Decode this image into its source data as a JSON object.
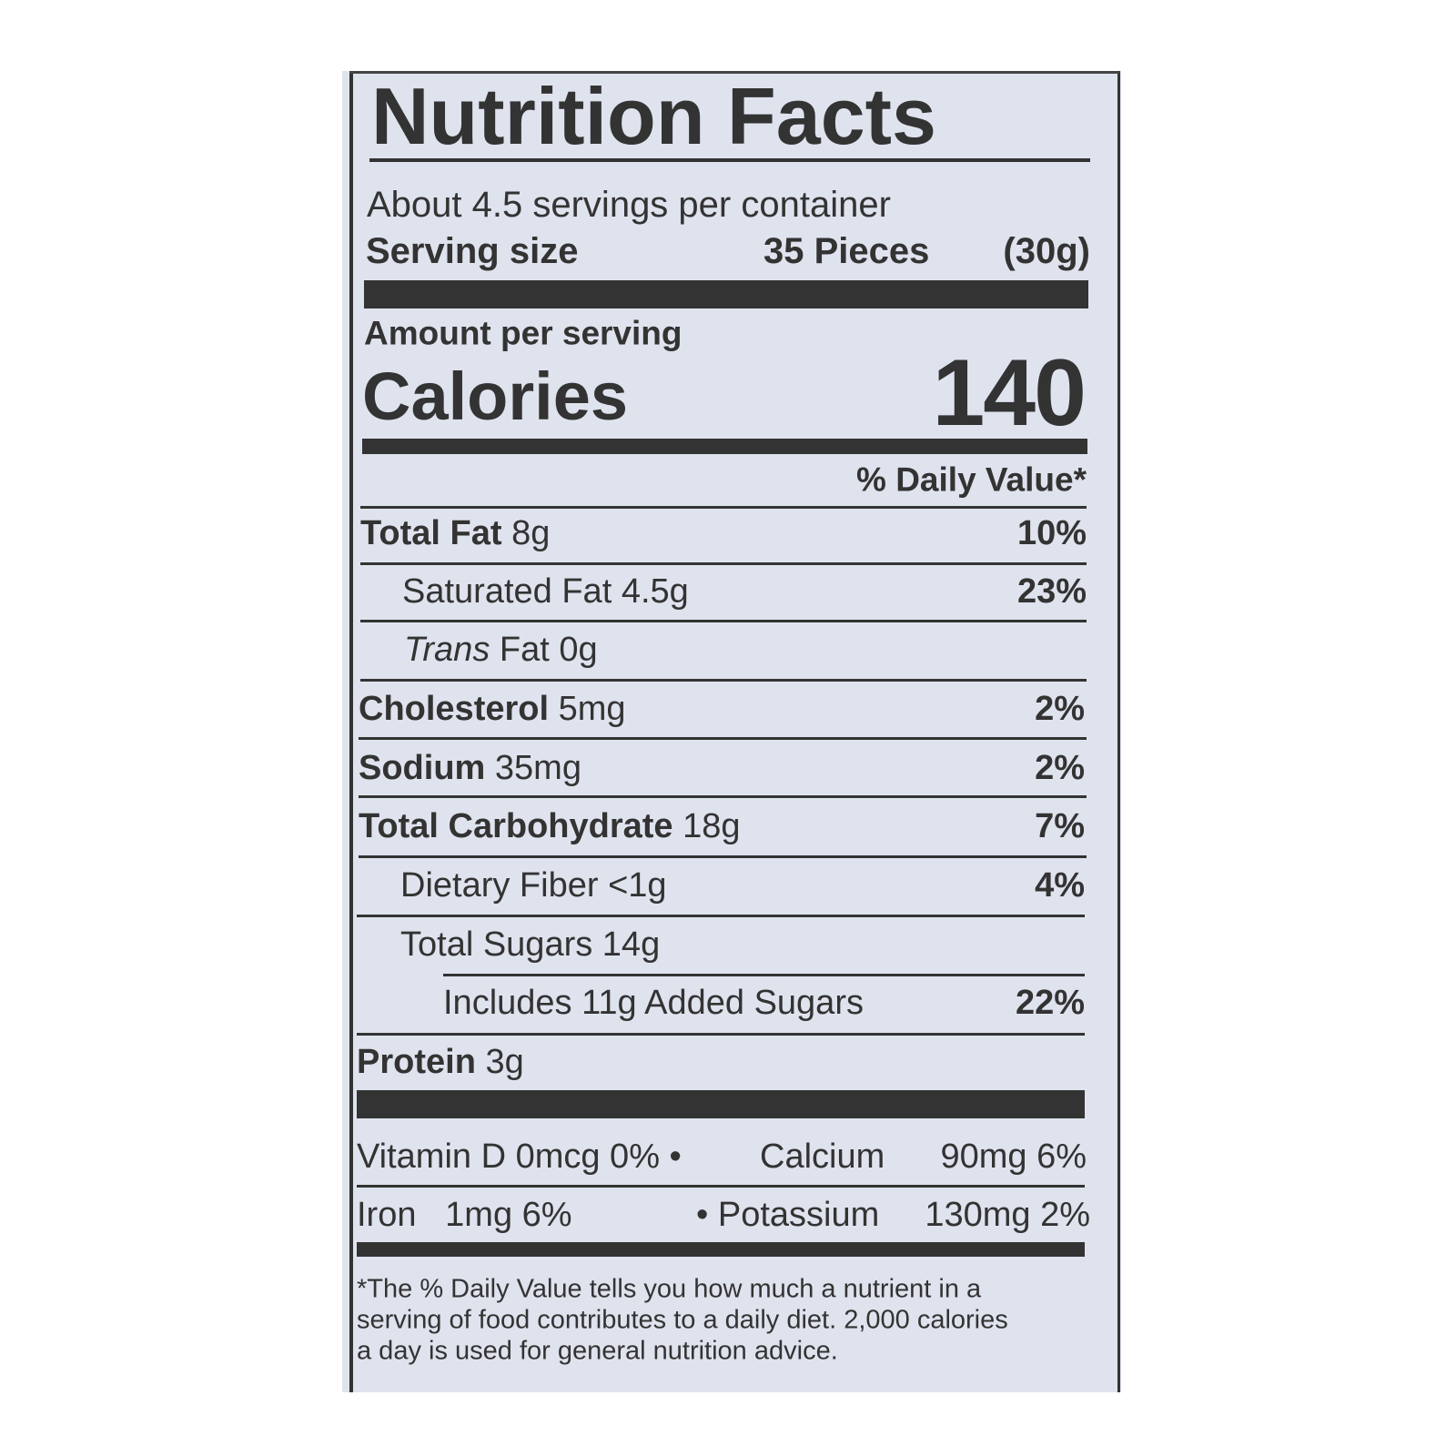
{
  "title": "Nutrition Facts",
  "servings_per_container": "About 4.5 servings per container",
  "serving_size": {
    "label": "Serving size",
    "pieces": "35 Pieces",
    "grams": "(30g)"
  },
  "amount_per_serving": "Amount per serving",
  "calories": {
    "label": "Calories",
    "value": "140"
  },
  "daily_value_header": "% Daily Value*",
  "nutrients": [
    {
      "name": "Total Fat",
      "amount": "8g",
      "dv": "10%",
      "bold": true,
      "indent": 0
    },
    {
      "name": "Saturated Fat",
      "amount": "4.5g",
      "dv": "23%",
      "bold": false,
      "indent": 1
    },
    {
      "name_italic": "Trans",
      "name": " Fat",
      "amount": "0g",
      "dv": "",
      "bold": false,
      "indent": 1
    },
    {
      "name": "Cholesterol",
      "amount": "5mg",
      "dv": "2%",
      "bold": true,
      "indent": 0
    },
    {
      "name": "Sodium",
      "amount": "35mg",
      "dv": "2%",
      "bold": true,
      "indent": 0
    },
    {
      "name": "Total Carbohydrate",
      "amount": "18g",
      "dv": "7%",
      "bold": true,
      "indent": 0
    },
    {
      "name": "Dietary Fiber",
      "amount": "<1g",
      "dv": "4%",
      "bold": false,
      "indent": 1
    },
    {
      "name": "Total Sugars",
      "amount": "14g",
      "dv": "",
      "bold": false,
      "indent": 1
    },
    {
      "name": "Includes 11g Added Sugars",
      "amount": "",
      "dv": "22%",
      "bold": false,
      "indent": 2
    },
    {
      "name": "Protein",
      "amount": "3g",
      "dv": "",
      "bold": true,
      "indent": 0
    }
  ],
  "micros": {
    "row1_left": "Vitamin D 0mcg 0% •",
    "row1_mid": "Calcium",
    "row1_right": "90mg 6%",
    "row2_left": "Iron   1mg 6%",
    "row2_mid": "• Potassium",
    "row2_right": "130mg 2%"
  },
  "footnote": [
    "*The % Daily Value tells you how much a nutrient in a",
    "serving of food contributes to a daily diet. 2,000 calories",
    "a day is used for general nutrition advice."
  ]
}
